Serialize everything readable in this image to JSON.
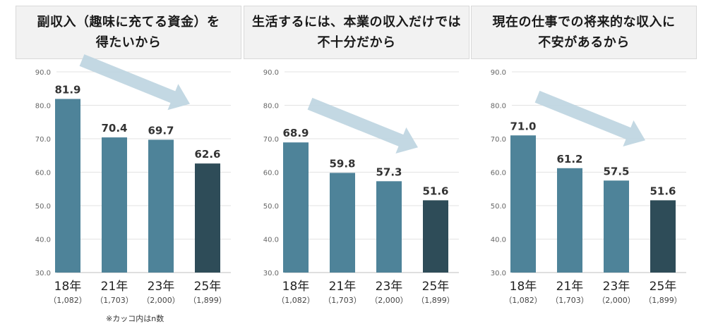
{
  "note": "※カッコ内はn数",
  "chart_data": [
    {
      "type": "bar",
      "title": "副収入（趣味に充てる資金）を\n得たいから",
      "categories": [
        "18年",
        "21年",
        "23年",
        "25年"
      ],
      "n_labels": [
        "（1,082）",
        "（1,703）",
        "（2,000）",
        "（1,899）"
      ],
      "values": [
        81.9,
        70.4,
        69.7,
        62.6
      ],
      "value_labels": [
        "81.9",
        "70.4",
        "69.7",
        "62.6"
      ],
      "ylim": [
        30.0,
        90.0
      ],
      "y_ticks": [
        "90.0",
        "80.0",
        "70.0",
        "60.0",
        "50.0",
        "40.0",
        "30.0"
      ],
      "grid": true,
      "bar_colors": [
        "#4e8399",
        "#4e8399",
        "#4e8399",
        "#2e4c58"
      ],
      "trend_arrow": "down"
    },
    {
      "type": "bar",
      "title": "生活するには、本業の収入だけでは\n不十分だから",
      "categories": [
        "18年",
        "21年",
        "23年",
        "25年"
      ],
      "n_labels": [
        "（1,082）",
        "（1,703）",
        "（2,000）",
        "（1,899）"
      ],
      "values": [
        68.9,
        59.8,
        57.3,
        51.6
      ],
      "value_labels": [
        "68.9",
        "59.8",
        "57.3",
        "51.6"
      ],
      "ylim": [
        30.0,
        90.0
      ],
      "y_ticks": [
        "90.0",
        "80.0",
        "70.0",
        "60.0",
        "50.0",
        "40.0",
        "30.0"
      ],
      "grid": true,
      "bar_colors": [
        "#4e8399",
        "#4e8399",
        "#4e8399",
        "#2e4c58"
      ],
      "trend_arrow": "down"
    },
    {
      "type": "bar",
      "title": "現在の仕事での将来的な収入に\n不安があるから",
      "categories": [
        "18年",
        "21年",
        "23年",
        "25年"
      ],
      "n_labels": [
        "（1,082）",
        "（1,703）",
        "（2,000）",
        "（1,899）"
      ],
      "values": [
        71.0,
        61.2,
        57.5,
        51.6
      ],
      "value_labels": [
        "71.0",
        "61.2",
        "57.5",
        "51.6"
      ],
      "ylim": [
        30.0,
        90.0
      ],
      "y_ticks": [
        "90.0",
        "80.0",
        "70.0",
        "60.0",
        "50.0",
        "40.0",
        "30.0"
      ],
      "grid": true,
      "bar_colors": [
        "#4e8399",
        "#4e8399",
        "#4e8399",
        "#2e4c58"
      ],
      "trend_arrow": "down"
    }
  ]
}
